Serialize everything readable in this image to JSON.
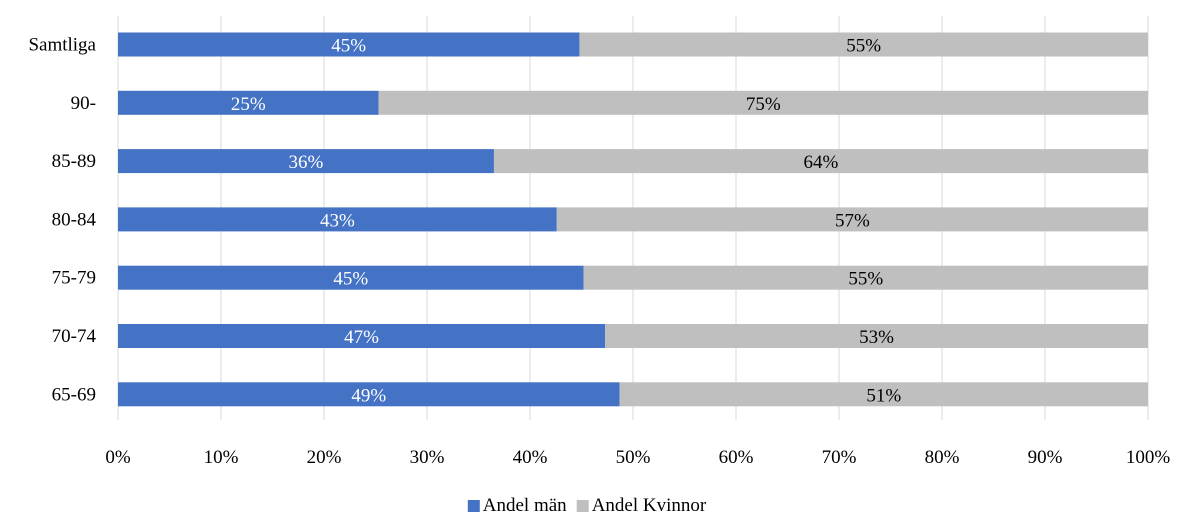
{
  "chart_data": {
    "type": "bar",
    "orientation": "horizontal",
    "stacked": true,
    "categories": [
      "Samtliga",
      "90-",
      "85-89",
      "80-84",
      "75-79",
      "70-74",
      "65-69"
    ],
    "series": [
      {
        "name": "Andel män",
        "color": "#4472c4",
        "label_color": "#ffffff",
        "values": [
          45,
          25,
          36,
          43,
          45,
          47,
          49
        ],
        "plot_values": [
          44.8,
          25.3,
          36.5,
          42.6,
          45.2,
          47.3,
          48.7
        ],
        "labels": [
          "45%",
          "25%",
          "36%",
          "43%",
          "45%",
          "47%",
          "49%"
        ]
      },
      {
        "name": "Andel Kvinnor",
        "color": "#bfbfbf",
        "label_color": "#000000",
        "values": [
          55,
          75,
          64,
          57,
          55,
          53,
          51
        ],
        "plot_values": [
          55.2,
          74.7,
          63.5,
          57.4,
          54.8,
          52.7,
          51.3
        ],
        "labels": [
          "55%",
          "75%",
          "64%",
          "57%",
          "55%",
          "53%",
          "51%"
        ]
      }
    ],
    "xlim": [
      0,
      100
    ],
    "x_ticks": [
      "0%",
      "10%",
      "20%",
      "30%",
      "40%",
      "50%",
      "60%",
      "70%",
      "80%",
      "90%",
      "100%"
    ],
    "grid": true,
    "legend_position": "bottom",
    "title": "",
    "xlabel": "",
    "ylabel": ""
  }
}
